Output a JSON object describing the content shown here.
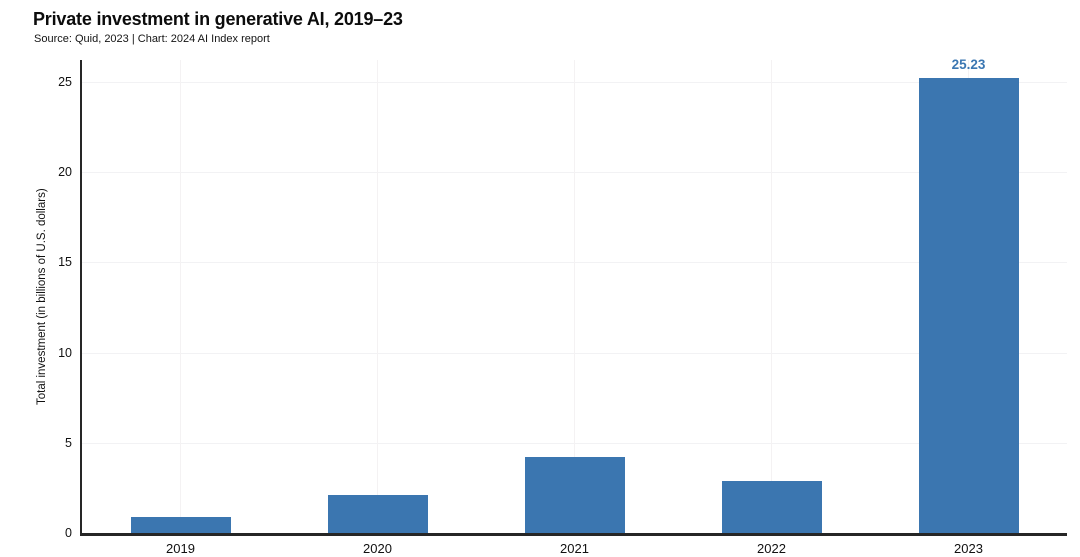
{
  "chart_data": {
    "type": "bar",
    "title": "Private investment in generative AI, 2019–23",
    "subtitle": "Source: Quid, 2023 | Chart: 2024 AI Index report",
    "categories": [
      "2019",
      "2020",
      "2021",
      "2022",
      "2023"
    ],
    "values": [
      0.9,
      2.1,
      4.2,
      2.9,
      25.23
    ],
    "bar_labels": [
      "",
      "",
      "",
      "",
      "25.23"
    ],
    "xlabel": "",
    "ylabel": "Total investment (in billions of U.S. dollars)",
    "yticks": [
      0,
      5,
      10,
      15,
      20,
      25
    ],
    "ylim": [
      0,
      26.2
    ],
    "grid": true,
    "legend": "none",
    "colors": {
      "bar": "#3b76b0",
      "bar_label": "#3b77b2",
      "axis": "#262626",
      "grid_h": "#f2f2f4",
      "grid_v": "#f4f2f3",
      "tick_text": "#111111"
    }
  }
}
